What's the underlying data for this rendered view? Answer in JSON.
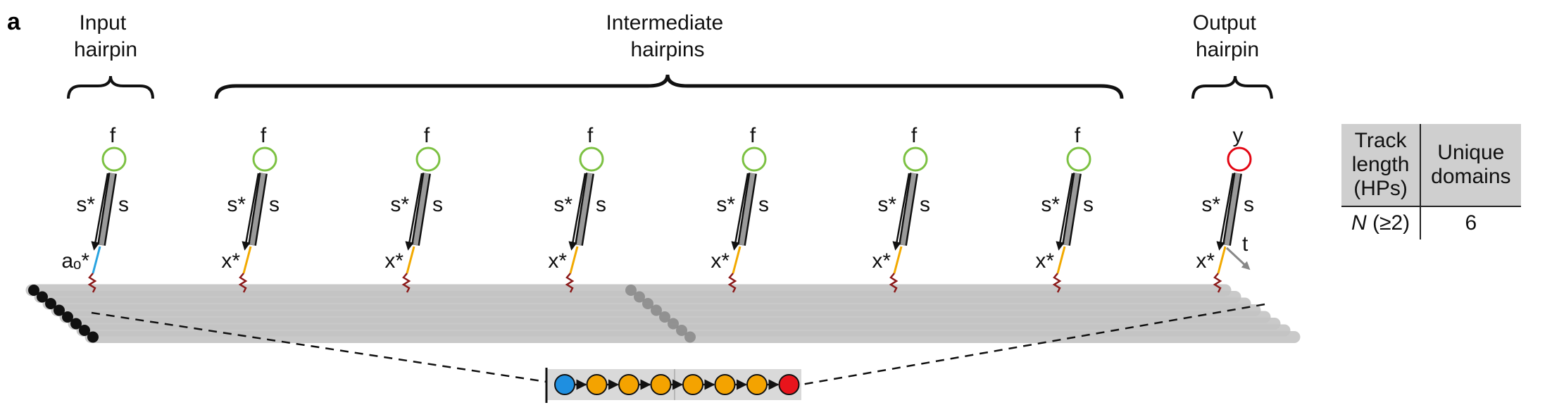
{
  "panel_label": "a",
  "groups": {
    "input": [
      "Input",
      "hairpin"
    ],
    "intermediate": [
      "Intermediate",
      "hairpins"
    ],
    "output": [
      "Output",
      "hairpin"
    ]
  },
  "hairpins": [
    {
      "top": "f",
      "left": "s*",
      "right": "s",
      "toehold": "aₒ*",
      "end": "",
      "role": "input"
    },
    {
      "top": "f",
      "left": "s*",
      "right": "s",
      "toehold": "x*",
      "end": "",
      "role": "intermediate"
    },
    {
      "top": "f",
      "left": "s*",
      "right": "s",
      "toehold": "x*",
      "end": "",
      "role": "intermediate"
    },
    {
      "top": "f",
      "left": "s*",
      "right": "s",
      "toehold": "x*",
      "end": "",
      "role": "intermediate"
    },
    {
      "top": "f",
      "left": "s*",
      "right": "s",
      "toehold": "x*",
      "end": "",
      "role": "intermediate"
    },
    {
      "top": "f",
      "left": "s*",
      "right": "s",
      "toehold": "x*",
      "end": "",
      "role": "intermediate"
    },
    {
      "top": "f",
      "left": "s*",
      "right": "s",
      "toehold": "x*",
      "end": "",
      "role": "intermediate"
    },
    {
      "top": "y",
      "left": "s*",
      "right": "s",
      "toehold": "x*",
      "end": "t",
      "role": "output"
    }
  ],
  "chain": [
    "input",
    "intermediate",
    "intermediate",
    "intermediate",
    "intermediate",
    "intermediate",
    "intermediate",
    "output"
  ],
  "table": {
    "headers": [
      [
        "Track",
        "length",
        "(HPs)"
      ],
      [
        "Unique",
        "domains"
      ]
    ],
    "row": [
      "N",
      " (≥2)",
      "6"
    ]
  },
  "colors": {
    "input_toehold": "#29a3e0",
    "intermediate_toehold": "#f2a900",
    "fluorophore_green": "#7cc142",
    "fluorophore_red": "#e30613",
    "chain_input": "#1f8fe0",
    "chain_intermediate": "#f4a300",
    "chain_output": "#e8141c",
    "track_gray": "#c4c4c4",
    "linker": "#8b1a1a"
  }
}
